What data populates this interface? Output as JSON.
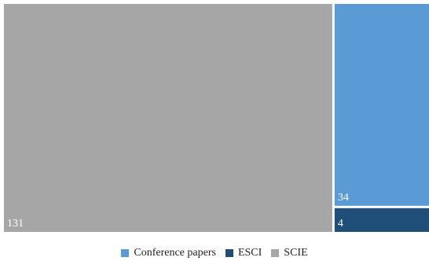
{
  "chart_data": {
    "type": "treemap",
    "title": "",
    "series": [
      {
        "name": "SCIE",
        "value": 131,
        "label": "131",
        "color": "#a6a6a6"
      },
      {
        "name": "Conference papers",
        "value": 34,
        "label": "34",
        "color": "#5b9bd5"
      },
      {
        "name": "ESCI",
        "value": 4,
        "label": "4",
        "color": "#1f4e79"
      }
    ],
    "legend": {
      "position": "bottom",
      "items": [
        {
          "name": "Conference papers",
          "color": "#5b9bd5"
        },
        {
          "name": "ESCI",
          "color": "#1f4e79"
        },
        {
          "name": "SCIE",
          "color": "#a6a6a6"
        }
      ]
    }
  }
}
